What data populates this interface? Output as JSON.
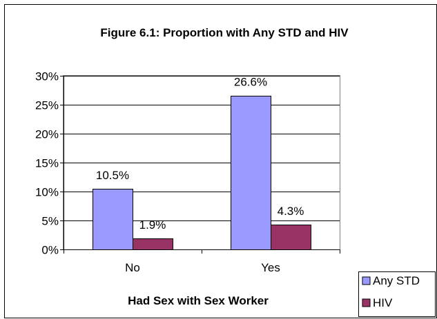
{
  "chart_data": {
    "type": "bar",
    "title": "Figure 6.1: Proportion with Any STD and HIV",
    "xlabel": "Had Sex with Sex Worker",
    "ylabel": "",
    "categories": [
      "No",
      "Yes"
    ],
    "series": [
      {
        "name": "Any STD",
        "color": "#9999ff",
        "values": [
          10.5,
          26.6
        ],
        "labels": [
          "10.5%",
          "26.6%"
        ]
      },
      {
        "name": "HIV",
        "color": "#993366",
        "values": [
          1.9,
          4.3
        ],
        "labels": [
          "1.9%",
          "4.3%"
        ]
      }
    ],
    "ylim": [
      0,
      30
    ],
    "yticks": [
      0,
      5,
      10,
      15,
      20,
      25,
      30
    ],
    "ytick_labels": [
      "0%",
      "5%",
      "10%",
      "15%",
      "20%",
      "25%",
      "30%"
    ],
    "grid": true,
    "legend_position": "right-bottom"
  }
}
